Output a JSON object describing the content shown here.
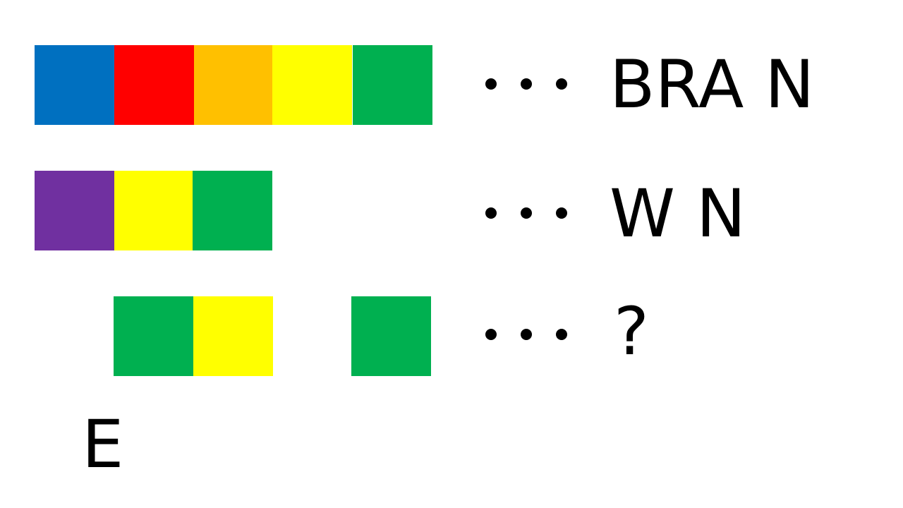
{
  "colors": {
    "blue": "#0070C0",
    "red": "#FF0000",
    "orange": "#FFC000",
    "yellow": "#FFFF00",
    "green": "#00B050",
    "purple": "#7030A0"
  },
  "rows": [
    {
      "blocks": [
        "blue",
        "red",
        "orange",
        "yellow",
        "green"
      ],
      "answer": "BRA N"
    },
    {
      "blocks": [
        "purple",
        "yellow",
        "green"
      ],
      "answer": "W N"
    },
    {
      "blocks": [
        "green",
        "yellow",
        "green"
      ],
      "answer": "?"
    }
  ],
  "hint": "E"
}
